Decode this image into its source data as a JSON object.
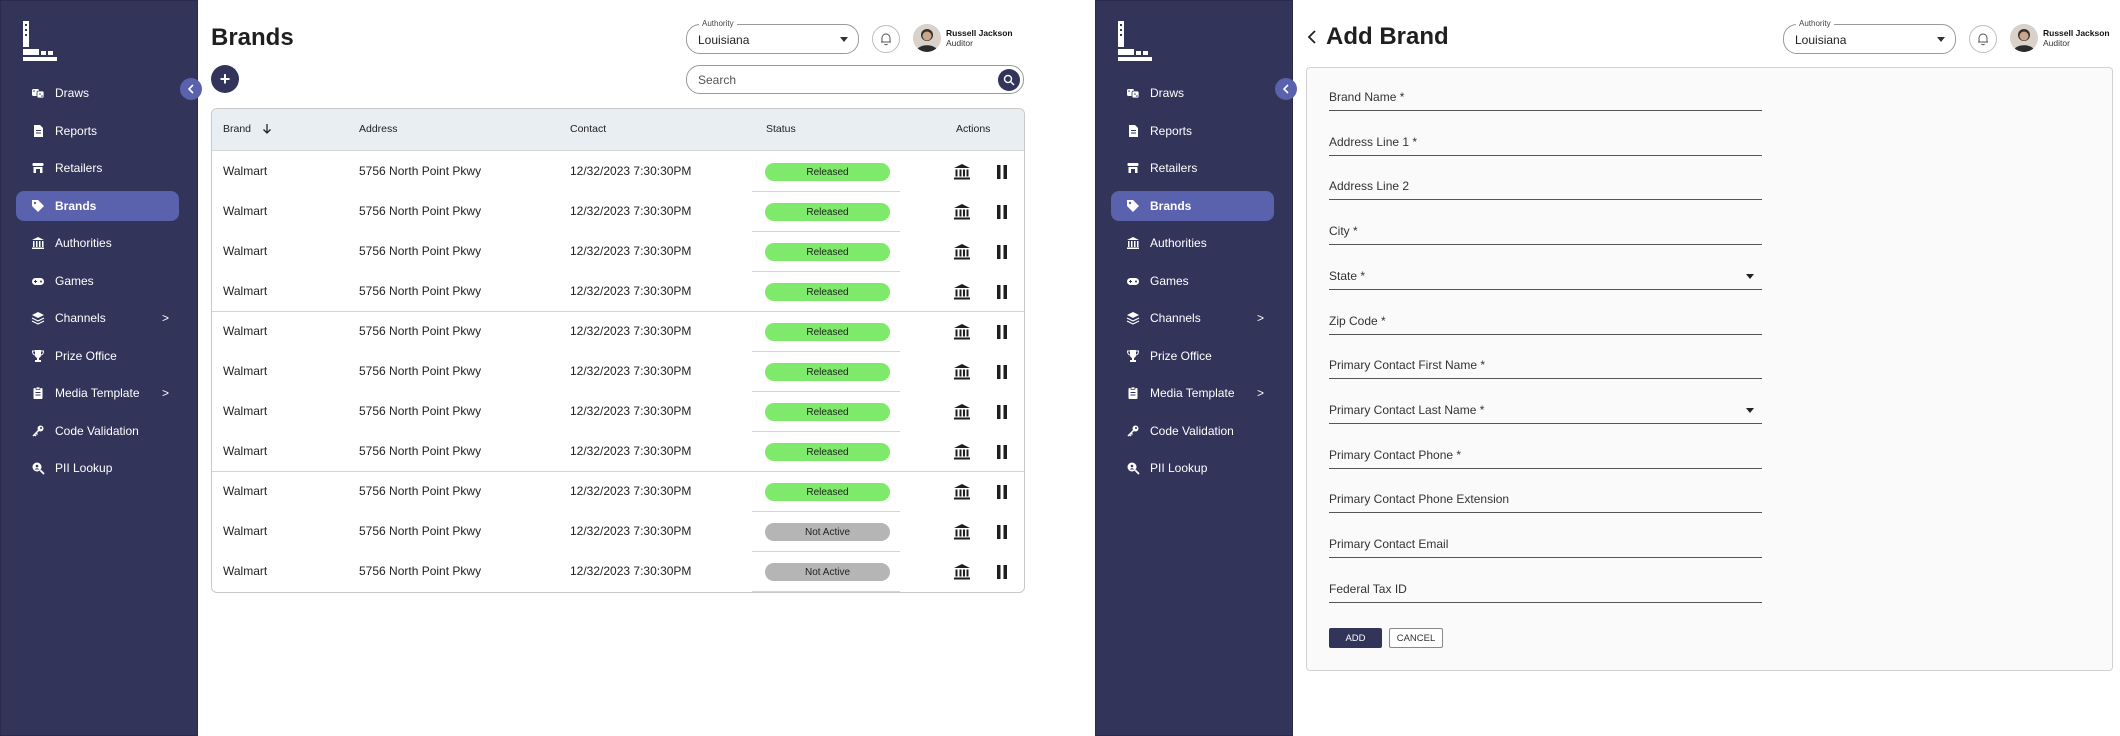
{
  "nav": [
    {
      "label": "Draws",
      "icon": "dice-icon"
    },
    {
      "label": "Reports",
      "icon": "document-icon"
    },
    {
      "label": "Retailers",
      "icon": "store-icon"
    },
    {
      "label": "Brands",
      "icon": "tag-icon"
    },
    {
      "label": "Authorities",
      "icon": "institution-icon"
    },
    {
      "label": "Games",
      "icon": "gamepad-icon"
    },
    {
      "label": "Channels",
      "icon": "layers-icon",
      "chevron": ">"
    },
    {
      "label": "Prize Office",
      "icon": "trophy-icon"
    },
    {
      "label": "Media Template",
      "icon": "clipboard-icon",
      "chevron": ">"
    },
    {
      "label": "Code Validation",
      "icon": "key-icon"
    },
    {
      "label": "PII Lookup",
      "icon": "search-person-icon"
    }
  ],
  "header": {
    "authority_label": "Authority",
    "authority_value": "Louisiana",
    "user_name": "Russell Jackson",
    "user_role": "Auditor"
  },
  "brands_page": {
    "title": "Brands",
    "add_label": "+",
    "search_placeholder": "Search",
    "columns": [
      "Brand",
      "Address",
      "Contact",
      "Status",
      "Actions"
    ],
    "rows": [
      {
        "brand": "Walmart",
        "address": "5756 North Point Pkwy",
        "contact": "12/32/2023  7:30:30PM",
        "status": "Released"
      },
      {
        "brand": "Walmart",
        "address": "5756 North Point Pkwy",
        "contact": "12/32/2023  7:30:30PM",
        "status": "Released"
      },
      {
        "brand": "Walmart",
        "address": "5756 North Point Pkwy",
        "contact": "12/32/2023  7:30:30PM",
        "status": "Released"
      },
      {
        "brand": "Walmart",
        "address": "5756 North Point Pkwy",
        "contact": "12/32/2023  7:30:30PM",
        "status": "Released"
      },
      {
        "brand": "Walmart",
        "address": "5756 North Point Pkwy",
        "contact": "12/32/2023  7:30:30PM",
        "status": "Released"
      },
      {
        "brand": "Walmart",
        "address": "5756 North Point Pkwy",
        "contact": "12/32/2023  7:30:30PM",
        "status": "Released"
      },
      {
        "brand": "Walmart",
        "address": "5756 North Point Pkwy",
        "contact": "12/32/2023  7:30:30PM",
        "status": "Released"
      },
      {
        "brand": "Walmart",
        "address": "5756 North Point Pkwy",
        "contact": "12/32/2023  7:30:30PM",
        "status": "Released"
      },
      {
        "brand": "Walmart",
        "address": "5756 North Point Pkwy",
        "contact": "12/32/2023  7:30:30PM",
        "status": "Released"
      },
      {
        "brand": "Walmart",
        "address": "5756 North Point Pkwy",
        "contact": "12/32/2023  7:30:30PM",
        "status": "Not Active"
      },
      {
        "brand": "Walmart",
        "address": "5756 North Point Pkwy",
        "contact": "12/32/2023  7:30:30PM",
        "status": "Not Active"
      }
    ]
  },
  "add_page": {
    "title": "Add Brand",
    "fields": [
      {
        "label": "Brand Name *"
      },
      {
        "label": "Address Line 1 *"
      },
      {
        "label": "Address Line 2"
      },
      {
        "label": "City *"
      },
      {
        "label": "State *",
        "dropdown": true
      },
      {
        "label": "Zip Code *"
      },
      {
        "label": "Primary Contact First Name *"
      },
      {
        "label": "Primary Contact Last Name *",
        "dropdown": true
      },
      {
        "label": "Primary Contact Phone *"
      },
      {
        "label": "Primary Contact Phone Extension"
      },
      {
        "label": "Primary Contact Email"
      },
      {
        "label": "Federal Tax ID"
      }
    ],
    "add_button": "ADD",
    "cancel_button": "CANCEL"
  },
  "colors": {
    "sidebar": "#33345a",
    "active": "#5a61ad",
    "released": "#7ee96b",
    "not_active": "#b5b5b5"
  }
}
